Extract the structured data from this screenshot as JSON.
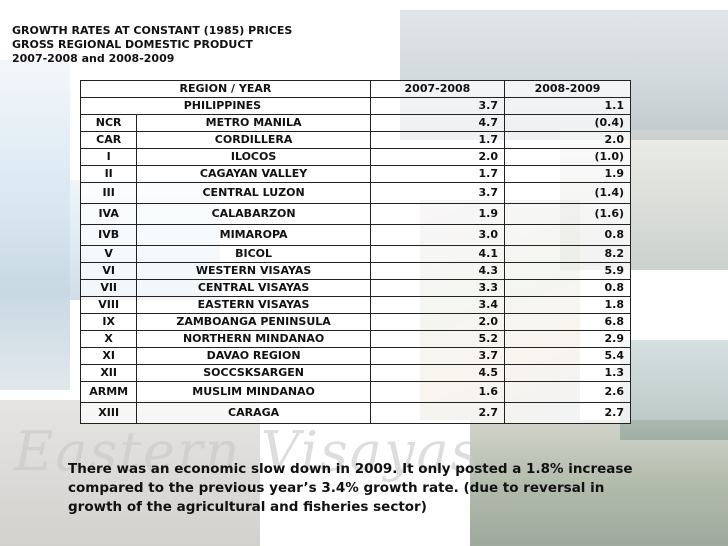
{
  "heading": {
    "line1": "GROWTH RATES AT CONSTANT (1985) PRICES",
    "line2": "GROSS REGIONAL DOMESTIC PRODUCT",
    "line3": "2007-2008 and 2008-2009"
  },
  "table": {
    "headers": {
      "region": "REGION / YEAR",
      "y1": "2007-2008",
      "y2": "2008-2009"
    },
    "national": {
      "name": "PHILIPPINES",
      "v1": "3.7",
      "v2": "1.1"
    },
    "rows": [
      {
        "code": "NCR",
        "name": "METRO MANILA",
        "v1": "4.7",
        "v2": "(0.4)"
      },
      {
        "code": "CAR",
        "name": "CORDILLERA",
        "v1": "1.7",
        "v2": "2.0"
      },
      {
        "code": "I",
        "name": "ILOCOS",
        "v1": "2.0",
        "v2": "(1.0)"
      },
      {
        "code": "II",
        "name": "CAGAYAN VALLEY",
        "v1": "1.7",
        "v2": "1.9"
      },
      {
        "code": "III",
        "name": "CENTRAL LUZON",
        "v1": "3.7",
        "v2": "(1.4)"
      },
      {
        "code": "IVA",
        "name": "CALABARZON",
        "v1": "1.9",
        "v2": "(1.6)"
      },
      {
        "code": "IVB",
        "name": "MIMAROPA",
        "v1": "3.0",
        "v2": "0.8"
      },
      {
        "code": "V",
        "name": "BICOL",
        "v1": "4.1",
        "v2": "8.2"
      },
      {
        "code": "VI",
        "name": "WESTERN VISAYAS",
        "v1": "4.3",
        "v2": "5.9"
      },
      {
        "code": "VII",
        "name": "CENTRAL VISAYAS",
        "v1": "3.3",
        "v2": "0.8"
      },
      {
        "code": "VIII",
        "name": "EASTERN VISAYAS",
        "v1": "3.4",
        "v2": "1.8"
      },
      {
        "code": "IX",
        "name": "ZAMBOANGA PENINSULA",
        "v1": "2.0",
        "v2": "6.8"
      },
      {
        "code": "X",
        "name": "NORTHERN MINDANAO",
        "v1": "5.2",
        "v2": "2.9"
      },
      {
        "code": "XI",
        "name": "DAVAO REGION",
        "v1": "3.7",
        "v2": "5.4"
      },
      {
        "code": "XII",
        "name": "SOCCSKSARGEN",
        "v1": "4.5",
        "v2": "1.3"
      },
      {
        "code": "ARMM",
        "name": "MUSLIM MINDANAO",
        "v1": "1.6",
        "v2": "2.6"
      },
      {
        "code": "XIII",
        "name": "CARAGA",
        "v1": "2.7",
        "v2": "2.7"
      }
    ]
  },
  "note": {
    "line1": "There was an economic slow down in 2009. It only posted a 1.8% increase",
    "line2": "compared to the previous year’s 3.4% growth rate. (due to reversal in",
    "line3": "growth of the agricultural and fisheries sector)"
  },
  "watermark": "Eastern Visayas"
}
